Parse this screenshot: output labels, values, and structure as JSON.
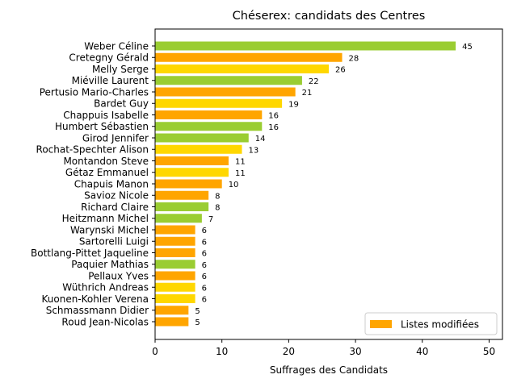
{
  "chart_data": {
    "type": "bar",
    "orientation": "horizontal",
    "title": "Chéserex: candidats des Centres",
    "xlabel": "Suffrages des Candidats",
    "ylabel": "",
    "xlim": [
      0,
      52
    ],
    "xticks": [
      0,
      10,
      20,
      30,
      40,
      50
    ],
    "grid": false,
    "legend": {
      "placement": "bottom-right",
      "entries": [
        {
          "label": "Listes modifiées",
          "color": "#FFA500"
        }
      ]
    },
    "bars": [
      {
        "name": "Weber Céline",
        "value": 45,
        "color": "#9ACD32"
      },
      {
        "name": "Cretegny Gérald",
        "value": 28,
        "color": "#FFA500"
      },
      {
        "name": "Melly Serge",
        "value": 26,
        "color": "#FFD700"
      },
      {
        "name": "Miéville Laurent",
        "value": 22,
        "color": "#9ACD32"
      },
      {
        "name": "Pertusio Mario-Charles",
        "value": 21,
        "color": "#FFA500"
      },
      {
        "name": "Bardet Guy",
        "value": 19,
        "color": "#FFD700"
      },
      {
        "name": "Chappuis Isabelle",
        "value": 16,
        "color": "#FFA500"
      },
      {
        "name": "Humbert Sébastien",
        "value": 16,
        "color": "#9ACD32"
      },
      {
        "name": "Girod Jennifer",
        "value": 14,
        "color": "#9ACD32"
      },
      {
        "name": "Rochat-Spechter Alison",
        "value": 13,
        "color": "#FFD700"
      },
      {
        "name": "Montandon Steve",
        "value": 11,
        "color": "#FFA500"
      },
      {
        "name": "Gétaz Emmanuel",
        "value": 11,
        "color": "#FFD700"
      },
      {
        "name": "Chapuis Manon",
        "value": 10,
        "color": "#FFA500"
      },
      {
        "name": "Savioz Nicole",
        "value": 8,
        "color": "#FFA500"
      },
      {
        "name": "Richard Claire",
        "value": 8,
        "color": "#9ACD32"
      },
      {
        "name": "Heitzmann Michel",
        "value": 7,
        "color": "#9ACD32"
      },
      {
        "name": "Warynski Michel",
        "value": 6,
        "color": "#FFA500"
      },
      {
        "name": "Sartorelli Luigi",
        "value": 6,
        "color": "#FFA500"
      },
      {
        "name": "Bottlang-Pittet Jaqueline",
        "value": 6,
        "color": "#FFA500"
      },
      {
        "name": "Paquier Mathias",
        "value": 6,
        "color": "#9ACD32"
      },
      {
        "name": "Pellaux Yves",
        "value": 6,
        "color": "#FFA500"
      },
      {
        "name": "Wüthrich Andreas",
        "value": 6,
        "color": "#FFD700"
      },
      {
        "name": "Kuonen-Kohler Verena",
        "value": 6,
        "color": "#FFD700"
      },
      {
        "name": "Schmassmann Didier",
        "value": 5,
        "color": "#FFA500"
      },
      {
        "name": "Roud Jean-Nicolas",
        "value": 5,
        "color": "#FFA500"
      }
    ]
  }
}
